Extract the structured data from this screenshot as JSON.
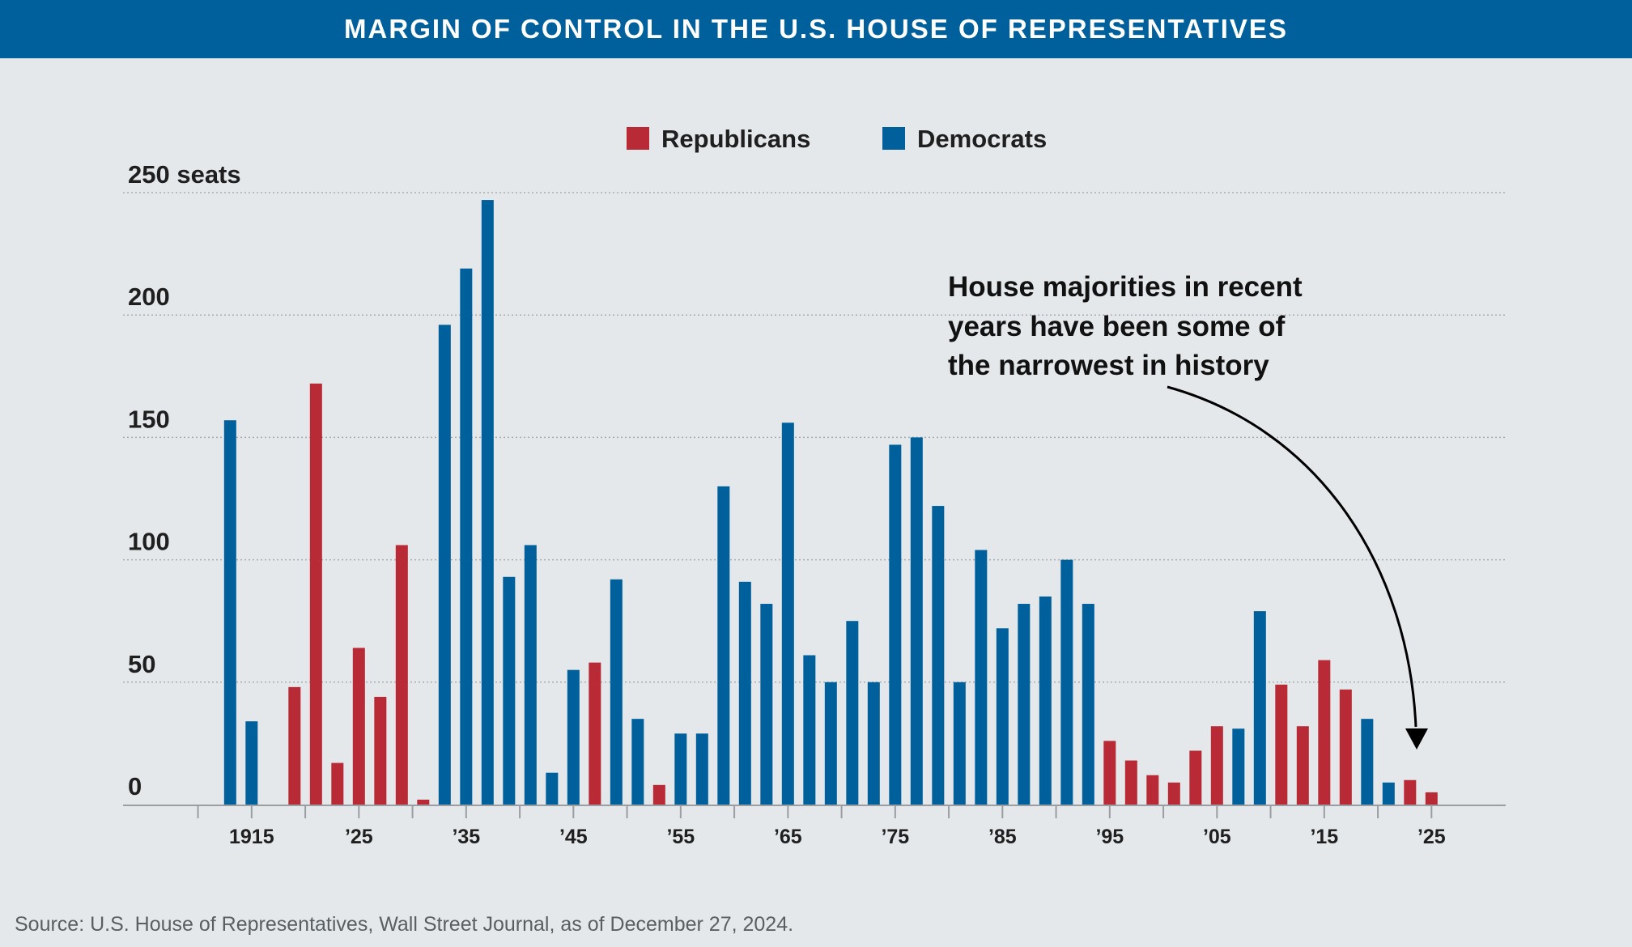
{
  "banner": {
    "title": "MARGIN OF CONTROL IN THE U.S. HOUSE OF REPRESENTATIVES"
  },
  "legend": [
    {
      "label": "Republicans",
      "color": "#b82a35"
    },
    {
      "label": "Democrats",
      "color": "#00609c"
    }
  ],
  "annotation": {
    "lines": [
      "House majorities in recent",
      "years have been some of",
      "the narrowest in history"
    ]
  },
  "source": "Source: U.S. House of Representatives, Wall Street Journal, as of December 27, 2024.",
  "colors": {
    "R": "#b82a35",
    "D": "#00609c",
    "grid": "#a9adb0",
    "axis": "#9a9ea2",
    "text": "#1f1f1f"
  },
  "chart_data": {
    "type": "bar",
    "title": "MARGIN OF CONTROL IN THE U.S. HOUSE OF REPRESENTATIVES",
    "xlabel": "",
    "ylabel": "250 seats",
    "ylim": [
      0,
      250
    ],
    "xlim": [
      1907,
      2029
    ],
    "yticks": [
      {
        "value": 0,
        "label": "0"
      },
      {
        "value": 50,
        "label": "50"
      },
      {
        "value": 100,
        "label": "100"
      },
      {
        "value": 150,
        "label": "150"
      },
      {
        "value": 200,
        "label": "200"
      },
      {
        "value": 250,
        "label": "250 seats"
      }
    ],
    "xticks": [
      {
        "value": 1915,
        "label": "1915"
      },
      {
        "value": 1925,
        "label": "’25"
      },
      {
        "value": 1935,
        "label": "’35"
      },
      {
        "value": 1945,
        "label": "’45"
      },
      {
        "value": 1955,
        "label": "’55"
      },
      {
        "value": 1965,
        "label": "’65"
      },
      {
        "value": 1975,
        "label": "’75"
      },
      {
        "value": 1985,
        "label": "’85"
      },
      {
        "value": 1995,
        "label": "’95"
      },
      {
        "value": 2005,
        "label": "’05"
      },
      {
        "value": 2015,
        "label": "’15"
      },
      {
        "value": 2025,
        "label": "’25"
      }
    ],
    "grid": true,
    "legend_position": "top-center",
    "series": [
      {
        "name": "Republicans",
        "party": "R",
        "color": "#b82a35"
      },
      {
        "name": "Democrats",
        "party": "D",
        "color": "#00609c"
      }
    ],
    "bars": [
      {
        "year": 1913,
        "party": "D",
        "value": 157
      },
      {
        "year": 1915,
        "party": "D",
        "value": 34
      },
      {
        "year": 1917,
        "party": "D",
        "value": 0
      },
      {
        "year": 1919,
        "party": "R",
        "value": 48
      },
      {
        "year": 1921,
        "party": "R",
        "value": 172
      },
      {
        "year": 1923,
        "party": "R",
        "value": 17
      },
      {
        "year": 1925,
        "party": "R",
        "value": 64
      },
      {
        "year": 1927,
        "party": "R",
        "value": 44
      },
      {
        "year": 1929,
        "party": "R",
        "value": 106
      },
      {
        "year": 1931,
        "party": "R",
        "value": 2
      },
      {
        "year": 1933,
        "party": "D",
        "value": 196
      },
      {
        "year": 1935,
        "party": "D",
        "value": 219
      },
      {
        "year": 1937,
        "party": "D",
        "value": 247
      },
      {
        "year": 1939,
        "party": "D",
        "value": 93
      },
      {
        "year": 1941,
        "party": "D",
        "value": 106
      },
      {
        "year": 1943,
        "party": "D",
        "value": 13
      },
      {
        "year": 1945,
        "party": "D",
        "value": 55
      },
      {
        "year": 1947,
        "party": "R",
        "value": 58
      },
      {
        "year": 1949,
        "party": "D",
        "value": 92
      },
      {
        "year": 1951,
        "party": "D",
        "value": 35
      },
      {
        "year": 1953,
        "party": "R",
        "value": 8
      },
      {
        "year": 1955,
        "party": "D",
        "value": 29
      },
      {
        "year": 1957,
        "party": "D",
        "value": 29
      },
      {
        "year": 1959,
        "party": "D",
        "value": 130
      },
      {
        "year": 1961,
        "party": "D",
        "value": 91
      },
      {
        "year": 1963,
        "party": "D",
        "value": 82
      },
      {
        "year": 1965,
        "party": "D",
        "value": 156
      },
      {
        "year": 1967,
        "party": "D",
        "value": 61
      },
      {
        "year": 1969,
        "party": "D",
        "value": 50
      },
      {
        "year": 1971,
        "party": "D",
        "value": 75
      },
      {
        "year": 1973,
        "party": "D",
        "value": 50
      },
      {
        "year": 1975,
        "party": "D",
        "value": 147
      },
      {
        "year": 1977,
        "party": "D",
        "value": 150
      },
      {
        "year": 1979,
        "party": "D",
        "value": 122
      },
      {
        "year": 1981,
        "party": "D",
        "value": 50
      },
      {
        "year": 1983,
        "party": "D",
        "value": 104
      },
      {
        "year": 1985,
        "party": "D",
        "value": 72
      },
      {
        "year": 1987,
        "party": "D",
        "value": 82
      },
      {
        "year": 1989,
        "party": "D",
        "value": 85
      },
      {
        "year": 1991,
        "party": "D",
        "value": 100
      },
      {
        "year": 1993,
        "party": "D",
        "value": 82
      },
      {
        "year": 1995,
        "party": "R",
        "value": 26
      },
      {
        "year": 1997,
        "party": "R",
        "value": 18
      },
      {
        "year": 1999,
        "party": "R",
        "value": 12
      },
      {
        "year": 2001,
        "party": "R",
        "value": 9
      },
      {
        "year": 2003,
        "party": "R",
        "value": 22
      },
      {
        "year": 2005,
        "party": "R",
        "value": 32
      },
      {
        "year": 2007,
        "party": "D",
        "value": 31
      },
      {
        "year": 2009,
        "party": "D",
        "value": 79
      },
      {
        "year": 2011,
        "party": "R",
        "value": 49
      },
      {
        "year": 2013,
        "party": "R",
        "value": 32
      },
      {
        "year": 2015,
        "party": "R",
        "value": 59
      },
      {
        "year": 2017,
        "party": "R",
        "value": 47
      },
      {
        "year": 2019,
        "party": "D",
        "value": 35
      },
      {
        "year": 2021,
        "party": "D",
        "value": 9
      },
      {
        "year": 2023,
        "party": "R",
        "value": 10
      },
      {
        "year": 2025,
        "party": "R",
        "value": 5
      }
    ]
  }
}
